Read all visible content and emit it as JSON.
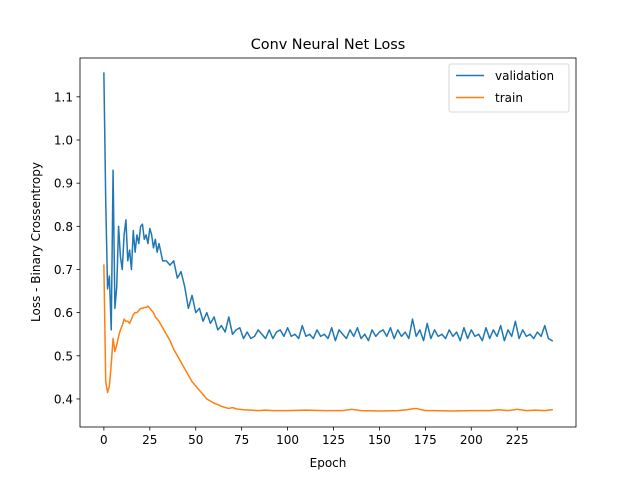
{
  "chart_data": {
    "type": "line",
    "title": "Conv Neural Net Loss",
    "xlabel": "Epoch",
    "ylabel": "Loss - Binary Crossentropy",
    "xlim": [
      -13,
      257
    ],
    "ylim": [
      0.335,
      1.19
    ],
    "xticks": [
      0,
      25,
      50,
      75,
      100,
      125,
      150,
      175,
      200,
      225
    ],
    "yticks": [
      0.4,
      0.5,
      0.6,
      0.7,
      0.8,
      0.9,
      1.0,
      1.1
    ],
    "ytick_labels": [
      "0.4",
      "0.5",
      "0.6",
      "0.7",
      "0.8",
      "0.9",
      "1.0",
      "1.1"
    ],
    "grid": false,
    "legend_position": "top-right",
    "series": [
      {
        "name": "validation",
        "color": "#1f77b4",
        "x": [
          0,
          1,
          2,
          3,
          4,
          5,
          6,
          7,
          8,
          9,
          10,
          11,
          12,
          13,
          14,
          15,
          16,
          17,
          18,
          19,
          20,
          21,
          22,
          23,
          24,
          25,
          26,
          27,
          28,
          29,
          30,
          32,
          34,
          36,
          38,
          40,
          42,
          44,
          46,
          48,
          50,
          52,
          54,
          56,
          58,
          60,
          62,
          64,
          66,
          68,
          70,
          72,
          74,
          76,
          78,
          80,
          82,
          84,
          86,
          88,
          90,
          92,
          94,
          96,
          98,
          100,
          102,
          104,
          106,
          108,
          110,
          112,
          114,
          116,
          118,
          120,
          122,
          124,
          126,
          128,
          130,
          132,
          134,
          136,
          138,
          140,
          142,
          144,
          146,
          148,
          150,
          152,
          154,
          156,
          158,
          160,
          162,
          164,
          166,
          168,
          170,
          172,
          174,
          176,
          178,
          180,
          182,
          184,
          186,
          188,
          190,
          192,
          194,
          196,
          198,
          200,
          202,
          204,
          206,
          208,
          210,
          212,
          214,
          216,
          218,
          220,
          222,
          224,
          226,
          228,
          230,
          232,
          234,
          236,
          238,
          240,
          242,
          244
        ],
        "y": [
          1.155,
          0.86,
          0.655,
          0.685,
          0.56,
          0.93,
          0.61,
          0.66,
          0.8,
          0.73,
          0.7,
          0.78,
          0.815,
          0.72,
          0.745,
          0.7,
          0.79,
          0.74,
          0.78,
          0.76,
          0.8,
          0.805,
          0.77,
          0.78,
          0.76,
          0.795,
          0.78,
          0.75,
          0.77,
          0.74,
          0.76,
          0.72,
          0.72,
          0.71,
          0.72,
          0.68,
          0.695,
          0.66,
          0.61,
          0.64,
          0.6,
          0.61,
          0.58,
          0.6,
          0.575,
          0.59,
          0.56,
          0.57,
          0.555,
          0.59,
          0.55,
          0.56,
          0.565,
          0.54,
          0.555,
          0.54,
          0.545,
          0.56,
          0.55,
          0.54,
          0.56,
          0.54,
          0.555,
          0.56,
          0.545,
          0.565,
          0.545,
          0.55,
          0.54,
          0.57,
          0.545,
          0.55,
          0.54,
          0.56,
          0.545,
          0.55,
          0.54,
          0.565,
          0.535,
          0.56,
          0.55,
          0.54,
          0.56,
          0.545,
          0.565,
          0.54,
          0.55,
          0.535,
          0.56,
          0.545,
          0.555,
          0.56,
          0.545,
          0.565,
          0.54,
          0.56,
          0.545,
          0.555,
          0.54,
          0.585,
          0.545,
          0.56,
          0.535,
          0.575,
          0.54,
          0.56,
          0.545,
          0.55,
          0.54,
          0.56,
          0.545,
          0.555,
          0.535,
          0.565,
          0.54,
          0.56,
          0.545,
          0.55,
          0.535,
          0.565,
          0.54,
          0.56,
          0.545,
          0.57,
          0.535,
          0.56,
          0.545,
          0.58,
          0.54,
          0.56,
          0.545,
          0.55,
          0.54,
          0.555,
          0.545,
          0.57,
          0.54,
          0.535
        ]
      },
      {
        "name": "train",
        "color": "#ff7f0e",
        "x": [
          0,
          1,
          2,
          3,
          4,
          5,
          6,
          7,
          8,
          9,
          10,
          11,
          12,
          13,
          14,
          15,
          16,
          17,
          18,
          19,
          20,
          21,
          22,
          23,
          24,
          25,
          26,
          27,
          28,
          30,
          32,
          34,
          36,
          38,
          40,
          42,
          44,
          46,
          48,
          50,
          52,
          54,
          56,
          58,
          60,
          62,
          64,
          66,
          68,
          70,
          72,
          74,
          76,
          80,
          84,
          88,
          92,
          96,
          100,
          110,
          120,
          130,
          135,
          140,
          150,
          160,
          165,
          168,
          170,
          175,
          180,
          190,
          200,
          210,
          215,
          220,
          225,
          230,
          235,
          240,
          244
        ],
        "y": [
          0.71,
          0.44,
          0.415,
          0.43,
          0.48,
          0.54,
          0.51,
          0.525,
          0.545,
          0.56,
          0.57,
          0.585,
          0.58,
          0.58,
          0.575,
          0.585,
          0.595,
          0.6,
          0.6,
          0.605,
          0.61,
          0.61,
          0.612,
          0.612,
          0.615,
          0.61,
          0.605,
          0.6,
          0.59,
          0.58,
          0.565,
          0.55,
          0.535,
          0.515,
          0.5,
          0.485,
          0.47,
          0.455,
          0.44,
          0.43,
          0.42,
          0.41,
          0.4,
          0.395,
          0.39,
          0.387,
          0.383,
          0.38,
          0.378,
          0.38,
          0.377,
          0.376,
          0.375,
          0.374,
          0.373,
          0.374,
          0.373,
          0.373,
          0.373,
          0.374,
          0.373,
          0.373,
          0.376,
          0.373,
          0.372,
          0.373,
          0.375,
          0.377,
          0.378,
          0.373,
          0.373,
          0.372,
          0.373,
          0.373,
          0.375,
          0.373,
          0.376,
          0.373,
          0.374,
          0.373,
          0.375
        ]
      }
    ]
  }
}
